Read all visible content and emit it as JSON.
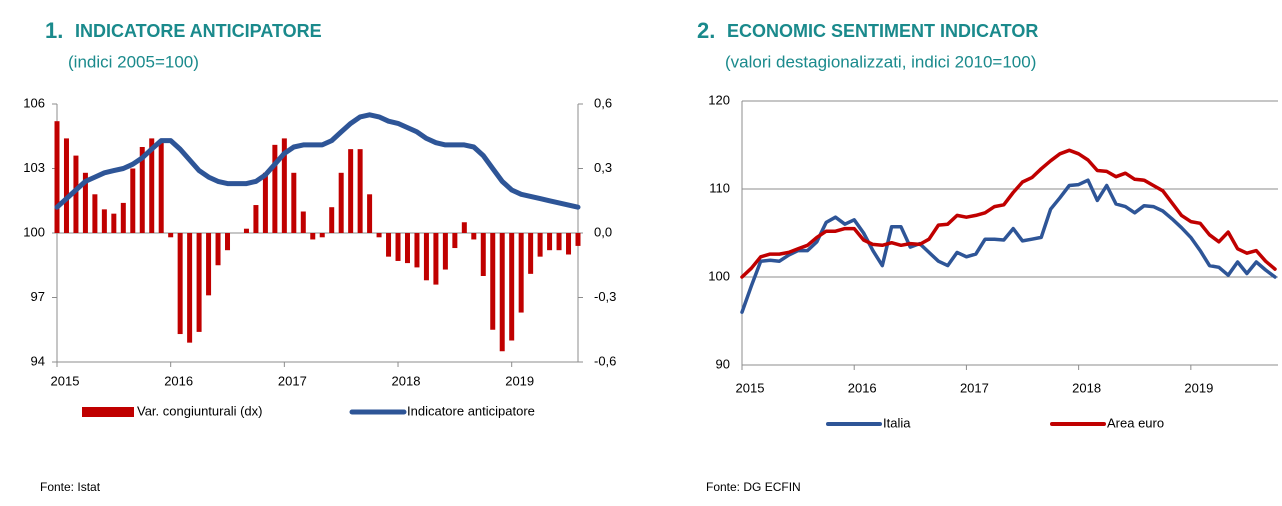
{
  "chart_data": [
    {
      "type": "bar-line",
      "number": "1.",
      "title": "INDICATORE ANTICIPATORE",
      "subtitle": "(indici 2005=100)",
      "categories": [
        "2015",
        null,
        null,
        null,
        null,
        null,
        null,
        null,
        null,
        null,
        null,
        null,
        "2016",
        null,
        null,
        null,
        null,
        null,
        null,
        null,
        null,
        null,
        null,
        null,
        "2017",
        null,
        null,
        null,
        null,
        null,
        null,
        null,
        null,
        null,
        null,
        null,
        "2018",
        null,
        null,
        null,
        null,
        null,
        null,
        null,
        null,
        null,
        null,
        null,
        "2019",
        null,
        null,
        null,
        null,
        null,
        null,
        null
      ],
      "ylim": [
        94,
        106
      ],
      "yticks": [
        94,
        97,
        100,
        103,
        106
      ],
      "y2lim": [
        -0.6,
        0.6
      ],
      "y2ticks": [
        {
          "value": -0.6,
          "label": "-0,6"
        },
        {
          "value": -0.3,
          "label": "-0,3"
        },
        {
          "value": 0,
          "label": "0,0"
        },
        {
          "value": 0.3,
          "label": "0,3"
        },
        {
          "value": 0.6,
          "label": "0,6"
        }
      ],
      "grid": false,
      "series": [
        {
          "name": "Var. congiunturali (dx)",
          "type": "bar",
          "axis": "y2",
          "color": "#c00000",
          "values": [
            0.52,
            0.44,
            0.36,
            0.28,
            0.18,
            0.11,
            0.09,
            0.14,
            0.3,
            0.4,
            0.44,
            0.42,
            -0.02,
            -0.47,
            -0.51,
            -0.46,
            -0.29,
            -0.15,
            -0.08,
            0.0,
            0.02,
            0.13,
            0.28,
            0.41,
            0.44,
            0.28,
            0.1,
            -0.03,
            -0.02,
            0.12,
            0.28,
            0.39,
            0.39,
            0.18,
            -0.02,
            -0.11,
            -0.13,
            -0.14,
            -0.16,
            -0.22,
            -0.24,
            -0.17,
            -0.07,
            0.05,
            -0.03,
            -0.2,
            -0.45,
            -0.55,
            -0.5,
            -0.37,
            -0.19,
            -0.11,
            -0.08,
            -0.08,
            -0.1,
            -0.06
          ]
        },
        {
          "name": "Indicatore anticipatore",
          "type": "line",
          "color": "#2e5597",
          "values": [
            101.2,
            101.6,
            102.0,
            102.4,
            102.6,
            102.8,
            102.9,
            103.0,
            103.2,
            103.5,
            103.9,
            104.3,
            104.3,
            103.9,
            103.4,
            102.9,
            102.6,
            102.4,
            102.3,
            102.3,
            102.3,
            102.4,
            102.7,
            103.2,
            103.7,
            104.0,
            104.1,
            104.1,
            104.1,
            104.3,
            104.7,
            105.1,
            105.4,
            105.5,
            105.4,
            105.2,
            105.1,
            104.9,
            104.7,
            104.4,
            104.2,
            104.1,
            104.1,
            104.1,
            104.0,
            103.6,
            103.0,
            102.4,
            102.0,
            101.8,
            101.7,
            101.6,
            101.5,
            101.4,
            101.3,
            101.2
          ]
        }
      ],
      "source": "Fonte: Istat"
    },
    {
      "type": "line",
      "number": "2.",
      "title": "ECONOMIC SENTIMENT INDICATOR",
      "subtitle": "(valori destagionalizzati, indici 2010=100)",
      "categories": [
        "2015",
        null,
        null,
        null,
        null,
        null,
        null,
        null,
        null,
        null,
        null,
        null,
        "2016",
        null,
        null,
        null,
        null,
        null,
        null,
        null,
        null,
        null,
        null,
        null,
        "2017",
        null,
        null,
        null,
        null,
        null,
        null,
        null,
        null,
        null,
        null,
        null,
        "2018",
        null,
        null,
        null,
        null,
        null,
        null,
        null,
        null,
        null,
        null,
        null,
        "2019",
        null,
        null,
        null,
        null,
        null,
        null,
        null,
        null,
        null
      ],
      "ylim": [
        90,
        120
      ],
      "yticks": [
        90,
        100,
        110,
        120
      ],
      "grid": true,
      "series": [
        {
          "name": "Italia",
          "type": "line",
          "color": "#2e5597",
          "values": [
            96.0,
            99.0,
            101.8,
            101.9,
            101.8,
            102.5,
            103.0,
            103.0,
            104.0,
            106.2,
            106.8,
            106.0,
            106.5,
            105.0,
            103.0,
            101.3,
            105.7,
            105.7,
            103.4,
            103.8,
            102.8,
            101.8,
            101.3,
            102.8,
            102.3,
            102.6,
            104.3,
            104.3,
            104.2,
            105.5,
            104.1,
            104.3,
            104.5,
            107.7,
            109.0,
            110.4,
            110.5,
            111.0,
            108.7,
            110.4,
            108.3,
            108.0,
            107.3,
            108.1,
            108.0,
            107.5,
            106.6,
            105.6,
            104.5,
            103.0,
            101.3,
            101.1,
            100.2,
            101.7,
            100.4,
            101.7,
            100.8,
            100.0
          ]
        },
        {
          "name": "Area euro",
          "type": "line",
          "color": "#c00000",
          "values": [
            100.0,
            101.0,
            102.3,
            102.6,
            102.6,
            102.8,
            103.2,
            103.6,
            104.5,
            105.2,
            105.2,
            105.5,
            105.5,
            104.2,
            103.7,
            103.6,
            103.9,
            103.6,
            103.8,
            103.7,
            104.3,
            105.9,
            106.0,
            107.0,
            106.8,
            107.0,
            107.3,
            108.0,
            108.2,
            109.6,
            110.8,
            111.3,
            112.3,
            113.2,
            114.0,
            114.4,
            114.0,
            113.3,
            112.1,
            112.0,
            111.4,
            111.8,
            111.1,
            111.0,
            110.4,
            109.8,
            108.4,
            107.0,
            106.3,
            106.1,
            104.8,
            104.0,
            105.1,
            103.2,
            102.7,
            103.0,
            101.8,
            100.9
          ]
        }
      ],
      "source": "Fonte: DG ECFIN"
    }
  ]
}
